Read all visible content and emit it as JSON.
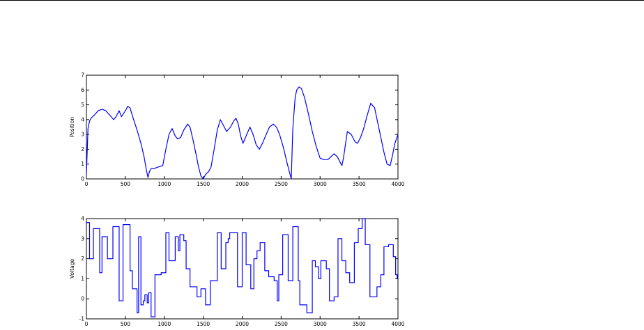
{
  "page": {
    "background": "#ffffff",
    "rule_color": "#000000"
  },
  "chart_data": [
    {
      "type": "line",
      "title": "",
      "xlabel": "",
      "ylabel": "Position",
      "xlim": [
        0,
        4000
      ],
      "ylim": [
        0,
        7
      ],
      "xticks": [
        0,
        500,
        1000,
        1500,
        2000,
        2500,
        3000,
        3500,
        4000
      ],
      "yticks": [
        0,
        1,
        2,
        3,
        4,
        5,
        6,
        7
      ],
      "grid": false,
      "color": "#0000ff",
      "series": [
        {
          "x": [
            0,
            20,
            40,
            60,
            100,
            150,
            200,
            250,
            300,
            350,
            380,
            420,
            450,
            500,
            530,
            560,
            600,
            650,
            700,
            740,
            770,
            790,
            810,
            830,
            870,
            920,
            980,
            1020,
            1060,
            1100,
            1140,
            1170,
            1210,
            1250,
            1300,
            1330,
            1370,
            1410,
            1440,
            1470,
            1500,
            1530,
            1570,
            1600,
            1640,
            1680,
            1720,
            1760,
            1800,
            1850,
            1890,
            1920,
            1950,
            1980,
            2010,
            2050,
            2100,
            2140,
            2180,
            2220,
            2260,
            2300,
            2350,
            2400,
            2440,
            2480,
            2530,
            2580,
            2610,
            2630,
            2650,
            2680,
            2700,
            2730,
            2760,
            2800,
            2850,
            2900,
            2950,
            3000,
            3050,
            3100,
            3140,
            3180,
            3220,
            3260,
            3280,
            3300,
            3350,
            3400,
            3450,
            3480,
            3520,
            3560,
            3600,
            3650,
            3700,
            3740,
            3780,
            3820,
            3860,
            3900,
            3930,
            3960,
            4000
          ],
          "y": [
            0.3,
            3.4,
            3.9,
            4.1,
            4.3,
            4.6,
            4.7,
            4.6,
            4.3,
            4.0,
            4.2,
            4.6,
            4.2,
            4.6,
            4.9,
            4.8,
            4.1,
            3.3,
            2.4,
            1.5,
            0.6,
            0.1,
            0.5,
            0.7,
            0.7,
            0.8,
            0.9,
            2.0,
            3.0,
            3.4,
            2.9,
            2.7,
            2.8,
            3.3,
            3.7,
            3.5,
            2.6,
            1.6,
            0.8,
            0.2,
            0.0,
            0.3,
            0.5,
            0.8,
            2.0,
            3.3,
            4.0,
            3.6,
            3.2,
            3.5,
            3.9,
            4.1,
            3.7,
            2.9,
            2.4,
            2.9,
            3.5,
            3.0,
            2.3,
            2.0,
            2.4,
            2.9,
            3.5,
            3.7,
            3.5,
            3.0,
            2.1,
            1.0,
            0.4,
            0.0,
            3.4,
            5.5,
            6.0,
            6.2,
            6.1,
            5.5,
            4.4,
            3.2,
            2.2,
            1.4,
            1.3,
            1.3,
            1.5,
            1.7,
            1.5,
            1.1,
            0.9,
            1.4,
            3.2,
            3.0,
            2.5,
            2.4,
            2.8,
            3.4,
            4.2,
            5.1,
            4.8,
            3.8,
            2.8,
            1.8,
            1.0,
            0.9,
            1.6,
            2.4,
            3.0
          ]
        }
      ]
    },
    {
      "type": "line",
      "title": "",
      "xlabel": "",
      "ylabel": "Voltage",
      "xlim": [
        0,
        4000
      ],
      "ylim": [
        -1,
        4
      ],
      "xticks": [
        0,
        500,
        1000,
        1500,
        2000,
        2500,
        3000,
        3500,
        4000
      ],
      "yticks": [
        -1,
        0,
        1,
        2,
        3,
        4
      ],
      "grid": false,
      "color": "#0000ff",
      "step": true,
      "series": [
        {
          "x": [
            0,
            40,
            90,
            170,
            200,
            270,
            340,
            420,
            470,
            560,
            590,
            650,
            670,
            700,
            730,
            750,
            780,
            800,
            830,
            880,
            960,
            1020,
            1060,
            1140,
            1180,
            1200,
            1250,
            1280,
            1330,
            1420,
            1470,
            1530,
            1590,
            1680,
            1730,
            1790,
            1820,
            1840,
            1940,
            2000,
            2050,
            2110,
            2150,
            2190,
            2230,
            2290,
            2340,
            2410,
            2450,
            2470,
            2520,
            2590,
            2650,
            2720,
            2740,
            2830,
            2900,
            2940,
            2980,
            3010,
            3080,
            3120,
            3180,
            3230,
            3280,
            3330,
            3380,
            3440,
            3490,
            3540,
            3580,
            3640,
            3730,
            3780,
            3820,
            3880,
            3940,
            3970,
            3990
          ],
          "y": [
            3.8,
            2.0,
            3.5,
            1.3,
            3.1,
            2.0,
            3.6,
            -0.1,
            3.7,
            1.4,
            0.5,
            -0.7,
            3.1,
            -0.3,
            -0.1,
            0.2,
            -0.2,
            0.3,
            -0.9,
            1.2,
            1.3,
            3.3,
            1.9,
            3.1,
            2.4,
            3.2,
            2.9,
            1.5,
            0.6,
            0.1,
            0.5,
            -0.3,
            0.9,
            3.3,
            1.5,
            2.8,
            3.0,
            3.3,
            0.6,
            3.3,
            1.7,
            0.5,
            2.0,
            2.4,
            2.8,
            1.4,
            1.1,
            0.9,
            -0.1,
            1.2,
            3.2,
            0.9,
            3.6,
            0.9,
            -0.3,
            -0.7,
            1.9,
            1.6,
            1.0,
            1.9,
            1.5,
            -0.1,
            0.1,
            3.0,
            1.9,
            1.3,
            0.8,
            2.8,
            3.5,
            4.0,
            2.7,
            0.1,
            0.6,
            1.2,
            2.6,
            2.7,
            2.1,
            1.2,
            1.0
          ]
        }
      ]
    }
  ]
}
